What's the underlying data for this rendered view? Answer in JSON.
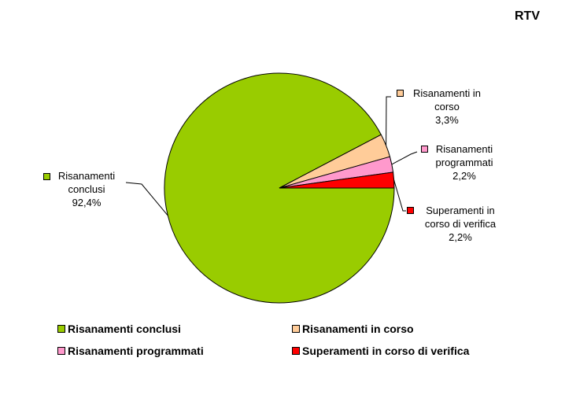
{
  "chart_data": {
    "type": "pie",
    "title": "RTV",
    "categories": [
      "Risanamenti conclusi",
      "Risanamenti in corso",
      "Risanamenti programmati",
      "Superamenti in corso di verifica"
    ],
    "values": [
      92.4,
      3.3,
      2.2,
      2.2
    ],
    "value_labels": [
      "92,4%",
      "3,3%",
      "2,2%",
      "2,2%"
    ],
    "colors": [
      "#99cc00",
      "#ffcc99",
      "#ff99cc",
      "#ff0000"
    ],
    "legend": "bottom"
  }
}
